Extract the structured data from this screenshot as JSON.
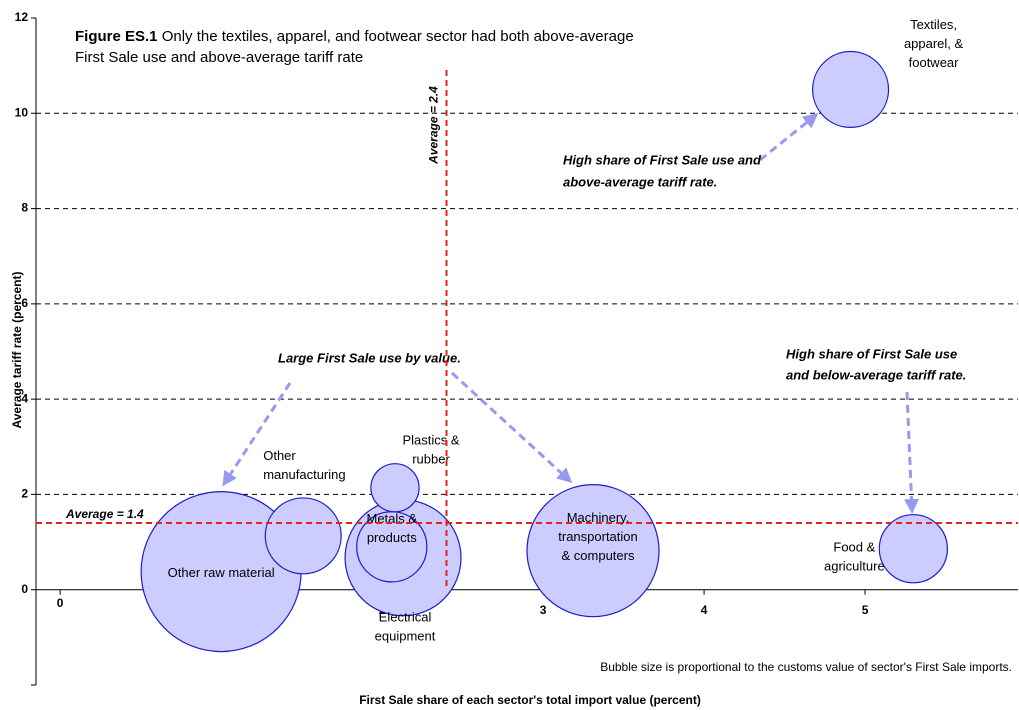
{
  "chart_data": {
    "type": "scatter",
    "figure_label": "Figure ES.1",
    "title_lines": [
      "Only the textiles, apparel, and footwear sector had both above-average",
      "First Sale use and above-average tariff rate"
    ],
    "x_label": "First Sale share of each sector's total import value (percent)",
    "y_label": "Average tariff rate (percent)",
    "xlim": [
      -0.15,
      5.95
    ],
    "ylim": [
      -2,
      12
    ],
    "xticks": [
      0,
      1,
      2,
      3,
      4,
      5
    ],
    "yticks": [
      0,
      2,
      4,
      6,
      8,
      10,
      12
    ],
    "grid": true,
    "color": "#ccccff",
    "edge_color": "#1c1ccc",
    "series": [
      {
        "labels": [
          [
            "Other raw material"
          ],
          [
            "Other",
            "manufacturing"
          ],
          [
            "Electrical",
            "equipment"
          ],
          [
            "Metals &",
            "products"
          ],
          [
            "Plastics &",
            "rubber"
          ],
          [
            "Machinery,",
            "transportation",
            "& computers"
          ],
          [
            "Food &",
            "agriculture"
          ],
          [
            "Textiles,",
            "apparel, &",
            "footwear"
          ]
        ],
        "x": [
          1.0,
          1.51,
          2.13,
          2.06,
          2.08,
          3.31,
          5.3,
          4.91
        ],
        "values": [
          0.38,
          1.13,
          0.67,
          0.9,
          2.14,
          0.82,
          0.86,
          10.5
        ],
        "sizes": [
          64,
          14.4,
          33.6,
          12.3,
          5.8,
          43.6,
          11.6,
          14.4
        ]
      }
    ],
    "reference_lines": [
      {
        "axis": "x",
        "value": 2.4,
        "label": "Average = 2.4",
        "color": "#e8201c"
      },
      {
        "axis": "y",
        "value": 1.4,
        "label": "Average = 1.4",
        "color": "#e8201c"
      }
    ],
    "annotations": [
      [
        "High share of First Sale use and",
        "above-average tariff rate."
      ],
      [
        "Large First Sale use by value."
      ],
      [
        "High share of First Sale use",
        "and below-average tariff rate."
      ]
    ],
    "footnote": "Bubble size is proportional to the customs value of sector's First Sale imports."
  }
}
